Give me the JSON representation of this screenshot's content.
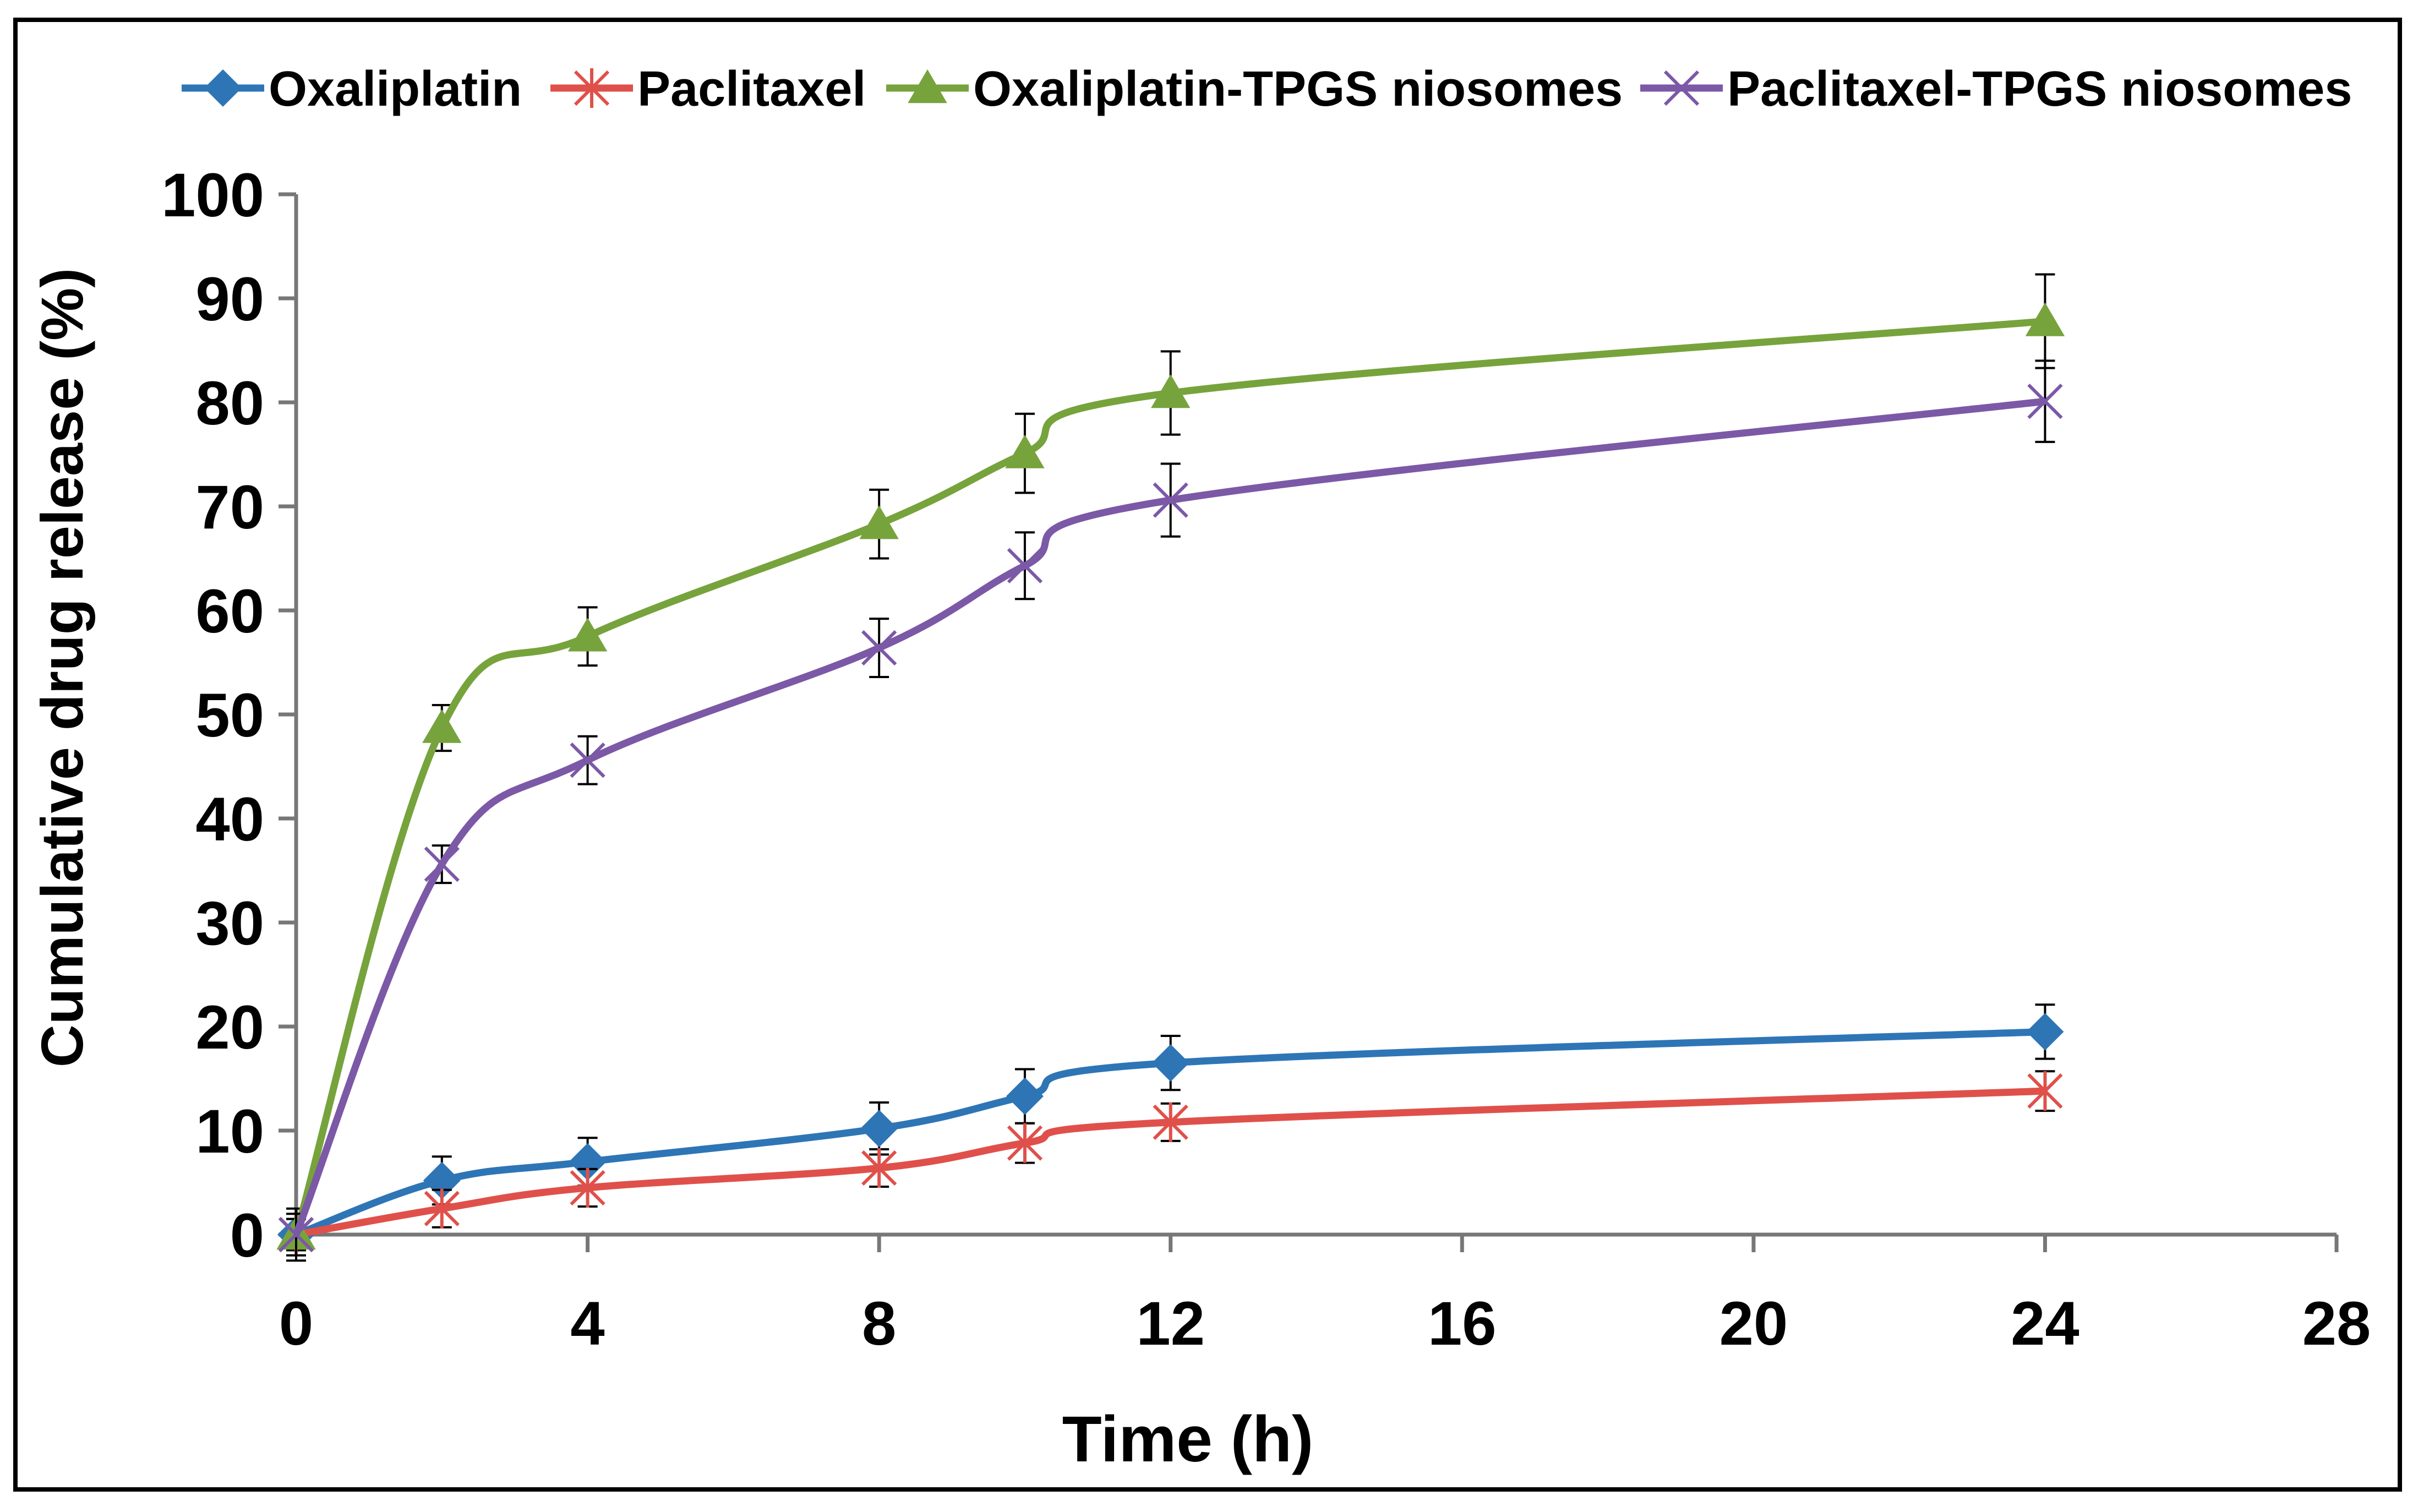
{
  "chart_data": {
    "type": "line",
    "title": "",
    "xlabel": "Time (h)",
    "ylabel": "Cumulative drug release (%)",
    "xlim": [
      0,
      28
    ],
    "ylim": [
      0,
      100
    ],
    "xticks": [
      0,
      4,
      8,
      12,
      16,
      20,
      24,
      28
    ],
    "xtick_labels": [
      "0",
      "4",
      "8",
      "12",
      "16",
      "20",
      "24",
      "28"
    ],
    "yticks": [
      0,
      10,
      20,
      30,
      40,
      50,
      60,
      70,
      80,
      90,
      100
    ],
    "ytick_labels": [
      "0",
      "10",
      "20",
      "30",
      "40",
      "50",
      "60",
      "70",
      "80",
      "90",
      "100"
    ],
    "grid": false,
    "legend_position": "top",
    "x": [
      0,
      2,
      4,
      8,
      10,
      12,
      24
    ],
    "series": [
      {
        "name": "Oxaliplatin",
        "color": "#2e75b6",
        "marker": "diamond",
        "values": [
          0,
          5.2,
          7.0,
          10.2,
          13.3,
          16.5,
          19.5
        ],
        "errors": [
          1.5,
          2.3,
          2.3,
          2.5,
          2.6,
          2.6,
          2.6
        ]
      },
      {
        "name": "Paclitaxel",
        "color": "#e0504a",
        "marker": "star",
        "values": [
          0,
          2.5,
          4.5,
          6.4,
          8.8,
          10.8,
          13.8
        ],
        "errors": [
          1.5,
          1.8,
          1.8,
          1.8,
          1.9,
          1.8,
          1.9
        ]
      },
      {
        "name": "Oxaliplatin-TPGS niosomes",
        "color": "#77a33c",
        "marker": "triangle",
        "values": [
          0,
          48.7,
          57.5,
          68.3,
          75.1,
          80.9,
          87.8
        ],
        "errors": [
          2.5,
          2.2,
          2.8,
          3.3,
          3.8,
          4.0,
          4.5
        ]
      },
      {
        "name": "Paclitaxel-TPGS niosomes",
        "color": "#7b59a6",
        "marker": "x",
        "values": [
          0,
          35.6,
          45.6,
          56.4,
          64.3,
          70.6,
          80.1
        ],
        "errors": [
          2.0,
          1.8,
          2.3,
          2.8,
          3.2,
          3.5,
          3.9
        ]
      }
    ]
  }
}
